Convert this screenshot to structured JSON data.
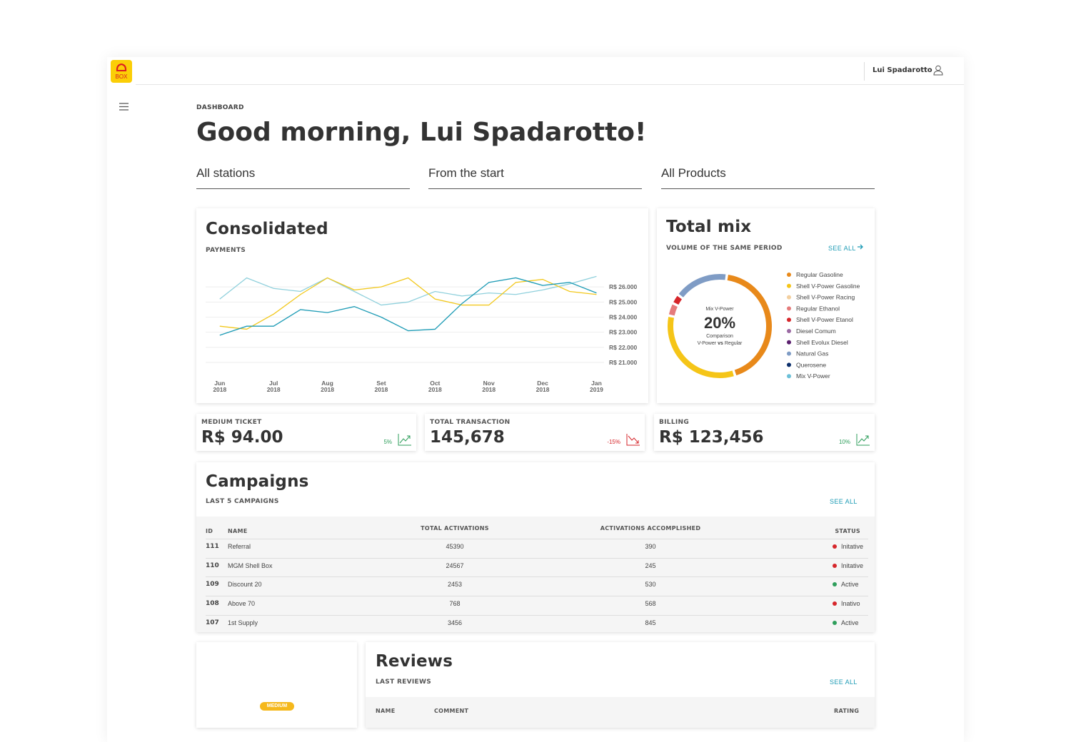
{
  "brand": {
    "logo_text": "BOX"
  },
  "header": {
    "user": "Lui Spadarotto"
  },
  "page": {
    "breadcrumb": "DASHBOARD",
    "greeting": "Good morning, Lui Spadarotto!"
  },
  "filters": [
    "All stations",
    "From the start",
    "All Products"
  ],
  "consolidated": {
    "title": "Consolidated",
    "subtitle": "PAYMENTS",
    "chart": {
      "type": "line",
      "xlim": [
        -0.13,
        7.14
      ],
      "xticks": [
        {
          "value": 0,
          "label": "Jun 2018"
        },
        {
          "value": 1,
          "label": "Jul 2018"
        },
        {
          "value": 2,
          "label": "Aug 2018"
        },
        {
          "value": 3,
          "label": "Set 2018"
        },
        {
          "value": 4,
          "label": "Oct 2018"
        },
        {
          "value": 5,
          "label": "Nov 2018"
        },
        {
          "value": 6,
          "label": "Dec 2018"
        },
        {
          "value": 7,
          "label": "Jan 2019"
        }
      ],
      "ylim": [
        21000,
        27000
      ],
      "yticks": [
        {
          "value": 26000,
          "label": "R$ 26.000"
        },
        {
          "value": 25000,
          "label": "R$ 25.000"
        },
        {
          "value": 24000,
          "label": "R$ 24.000"
        },
        {
          "value": 23000,
          "label": "R$ 23.000"
        },
        {
          "value": 22000,
          "label": "R$ 22.000"
        },
        {
          "value": 21000,
          "label": "R$ 21.000"
        }
      ],
      "grid": true,
      "x": [
        0,
        0.5,
        1,
        1.5,
        2,
        2.5,
        3,
        3.5,
        4,
        4.5,
        5,
        5.5,
        6,
        6.5,
        7
      ],
      "series": [
        {
          "color": "#8fd0dc",
          "values": [
            25200,
            26600,
            25900,
            25700,
            26600,
            25700,
            24800,
            25000,
            25700,
            25400,
            25600,
            25500,
            25800,
            26200,
            26700
          ]
        },
        {
          "color": "#f2c81c",
          "values": [
            23400,
            23200,
            24200,
            25500,
            26600,
            25800,
            26000,
            26600,
            25200,
            24800,
            24800,
            26300,
            26500,
            25700,
            25500
          ]
        },
        {
          "color": "#1d9bb5",
          "values": [
            22800,
            23400,
            23400,
            24500,
            24300,
            24700,
            24000,
            23100,
            23200,
            24900,
            26300,
            26600,
            26100,
            26300,
            25600
          ]
        }
      ]
    }
  },
  "total_mix": {
    "title": "Total mix",
    "subtitle": "VOLUME OF THE SAME PERIOD",
    "see_all": "SEE ALL",
    "chart": {
      "type": "donut",
      "center_label": "Mix V-Power",
      "center_value": "20%",
      "center_caption": "Comparison",
      "center_note": [
        "V-Power",
        "vs",
        "Regular"
      ],
      "categories": [
        "Regular Gasoline",
        "Shell V-Power Gasoline",
        "Shell V-Power Racing",
        "Regular Ethanol",
        "Shell V-Power Etanol",
        "Diesel Comum",
        "Shell Evolux Diesel",
        "Natural Gas",
        "Querosene",
        "Mix V-Power"
      ],
      "colors": [
        "#e8891a",
        "#f5c518",
        "#f3cf9e",
        "#e57b7b",
        "#d6262b",
        "#9b6aa3",
        "#5a1f6e",
        "#7f9cc5",
        "#0b2e6b",
        "#6cc0d8"
      ],
      "values": [
        43,
        33,
        0,
        4,
        3,
        0,
        0,
        17,
        0,
        0
      ]
    }
  },
  "stats": [
    {
      "label": "MEDIUM TICKET",
      "value": "R$ 94.00",
      "change": "5%",
      "color": "#2e9e5b"
    },
    {
      "label": "TOTAL TRANSACTION",
      "value": "145,678",
      "change": "-15%",
      "color": "#d6262b"
    },
    {
      "label": "BILLING",
      "value": "R$ 123,456",
      "change": "10%",
      "color": "#2e9e5b"
    }
  ],
  "campaigns": {
    "title": "Campaigns",
    "subtitle": "LAST 5 CAMPAIGNS",
    "see_all": "SEE ALL",
    "columns": [
      "ID",
      "NAME",
      "TOTAL ACTIVATIONS",
      "ACTIVATIONS ACCOMPLISHED",
      "STATUS"
    ],
    "rows": [
      {
        "id": "111",
        "name": "Referral",
        "total": 45390,
        "accomplished": 390,
        "status": "Initative",
        "status_color": "#d6262b"
      },
      {
        "id": "110",
        "name": "MGM Shell Box",
        "total": 24567,
        "accomplished": 245,
        "status": "Initative",
        "status_color": "#d6262b"
      },
      {
        "id": "109",
        "name": "Discount 20",
        "total": 2453,
        "accomplished": 530,
        "status": "Active",
        "status_color": "#2e9e5b"
      },
      {
        "id": "108",
        "name": "Above 70",
        "total": 768,
        "accomplished": 568,
        "status": "Inativo",
        "status_color": "#d6262b"
      },
      {
        "id": "107",
        "name": "1st Supply",
        "total": 3456,
        "accomplished": 845,
        "status": "Active",
        "status_color": "#2e9e5b"
      }
    ]
  },
  "reviews": {
    "badge": "MEDIUM",
    "title": "Reviews",
    "subtitle": "LAST REVIEWS",
    "see_all": "SEE ALL",
    "columns": [
      "NAME",
      "COMMENT",
      "RATING"
    ]
  }
}
